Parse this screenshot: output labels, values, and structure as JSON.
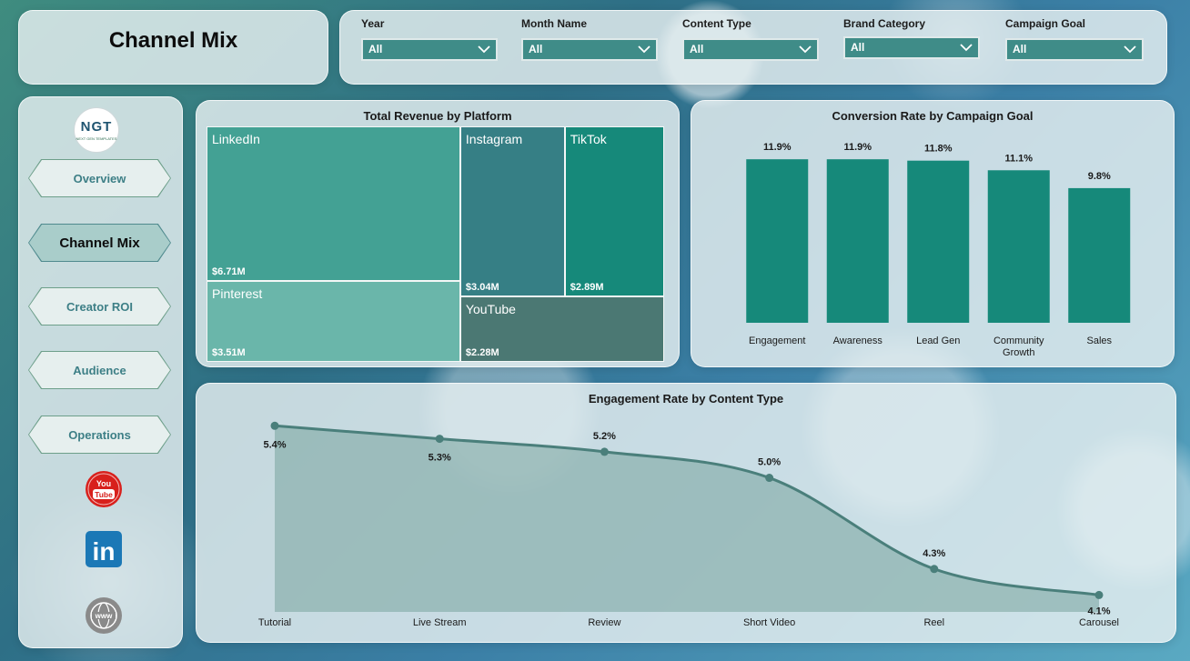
{
  "header": {
    "title": "Channel Mix"
  },
  "filters": [
    {
      "label": "Year",
      "value": "All"
    },
    {
      "label": "Month Name",
      "value": "All"
    },
    {
      "label": "Content Type",
      "value": "All"
    },
    {
      "label": "Brand Category",
      "value": "All"
    },
    {
      "label": "Campaign Goal",
      "value": "All"
    }
  ],
  "nav": {
    "logo": {
      "text": "NGT",
      "subtext": "NEXT GEN TEMPLATES"
    },
    "items": [
      {
        "label": "Overview",
        "active": false
      },
      {
        "label": "Channel Mix",
        "active": true
      },
      {
        "label": "Creator ROI",
        "active": false
      },
      {
        "label": "Audience",
        "active": false
      },
      {
        "label": "Operations",
        "active": false
      }
    ],
    "social": [
      {
        "icon": "youtube-icon",
        "text": "You Tube"
      },
      {
        "icon": "linkedin-icon",
        "text": "in"
      },
      {
        "icon": "globe-icon",
        "text": "www"
      }
    ]
  },
  "colors": {
    "teal": "#16897a",
    "panel": "#e8f0f2"
  },
  "chart_data": [
    {
      "type": "treemap",
      "title": "Total Revenue by Platform",
      "items": [
        {
          "name": "LinkedIn",
          "value": 6.71,
          "label": "$6.71M",
          "color": "#43a194"
        },
        {
          "name": "Pinterest",
          "value": 3.51,
          "label": "$3.51M",
          "color": "#6ab6aa"
        },
        {
          "name": "Instagram",
          "value": 3.04,
          "label": "$3.04M",
          "color": "#367f85"
        },
        {
          "name": "TikTok",
          "value": 2.89,
          "label": "$2.89M",
          "color": "#16897a"
        },
        {
          "name": "YouTube",
          "value": 2.28,
          "label": "$2.28M",
          "color": "#4b7873"
        }
      ]
    },
    {
      "type": "bar",
      "title": "Conversion Rate by Campaign Goal",
      "categories": [
        "Engagement",
        "Awareness",
        "Lead Gen",
        "Community Growth",
        "Sales"
      ],
      "values": [
        11.9,
        11.9,
        11.8,
        11.1,
        9.8
      ],
      "labels": [
        "11.9%",
        "11.9%",
        "11.8%",
        "11.1%",
        "9.8%"
      ],
      "ylim": [
        0,
        13.5
      ],
      "grid": false,
      "color": "#16897a"
    },
    {
      "type": "area",
      "title": "Engagement Rate by Content Type",
      "categories": [
        "Tutorial",
        "Live Stream",
        "Review",
        "Short Video",
        "Reel",
        "Carousel"
      ],
      "values": [
        5.4,
        5.3,
        5.2,
        5.0,
        4.3,
        4.1
      ],
      "labels": [
        "5.4%",
        "5.3%",
        "5.2%",
        "5.0%",
        "4.3%",
        "4.1%"
      ],
      "ylim": [
        3.97,
        5.43
      ],
      "grid": false,
      "color": "#4a7f7b"
    }
  ]
}
